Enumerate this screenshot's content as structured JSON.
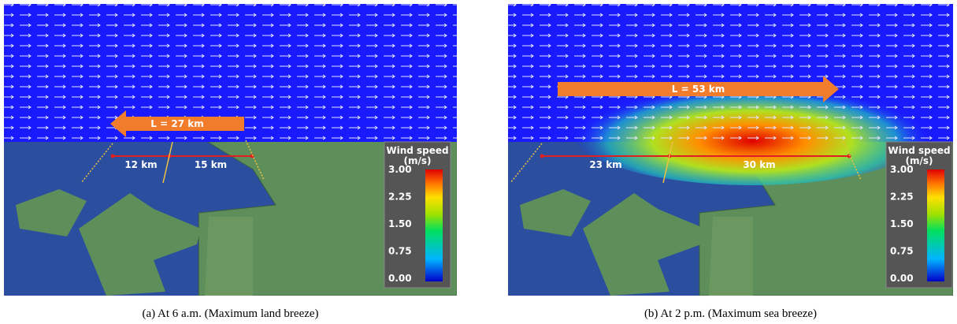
{
  "panels": [
    {
      "arrow_label": "L = 27 km",
      "segments": [
        "12 km",
        "15 km"
      ],
      "legend": {
        "title": "Wind speed",
        "unit": "(m/s)",
        "ticks": [
          "3.00",
          "2.25",
          "1.50",
          "0.75",
          "0.00"
        ]
      },
      "caption": "(a)  At  6  a.m.  (Maximum  land  breeze)"
    },
    {
      "arrow_label": "L = 53 km",
      "segments": [
        "23 km",
        "30 km"
      ],
      "legend": {
        "title": "Wind speed",
        "unit": "(m/s)",
        "ticks": [
          "3.00",
          "2.25",
          "1.50",
          "0.75",
          "0.00"
        ]
      },
      "caption": "(b)  At  2  p.m.  (Maximum  sea  breeze)"
    }
  ]
}
